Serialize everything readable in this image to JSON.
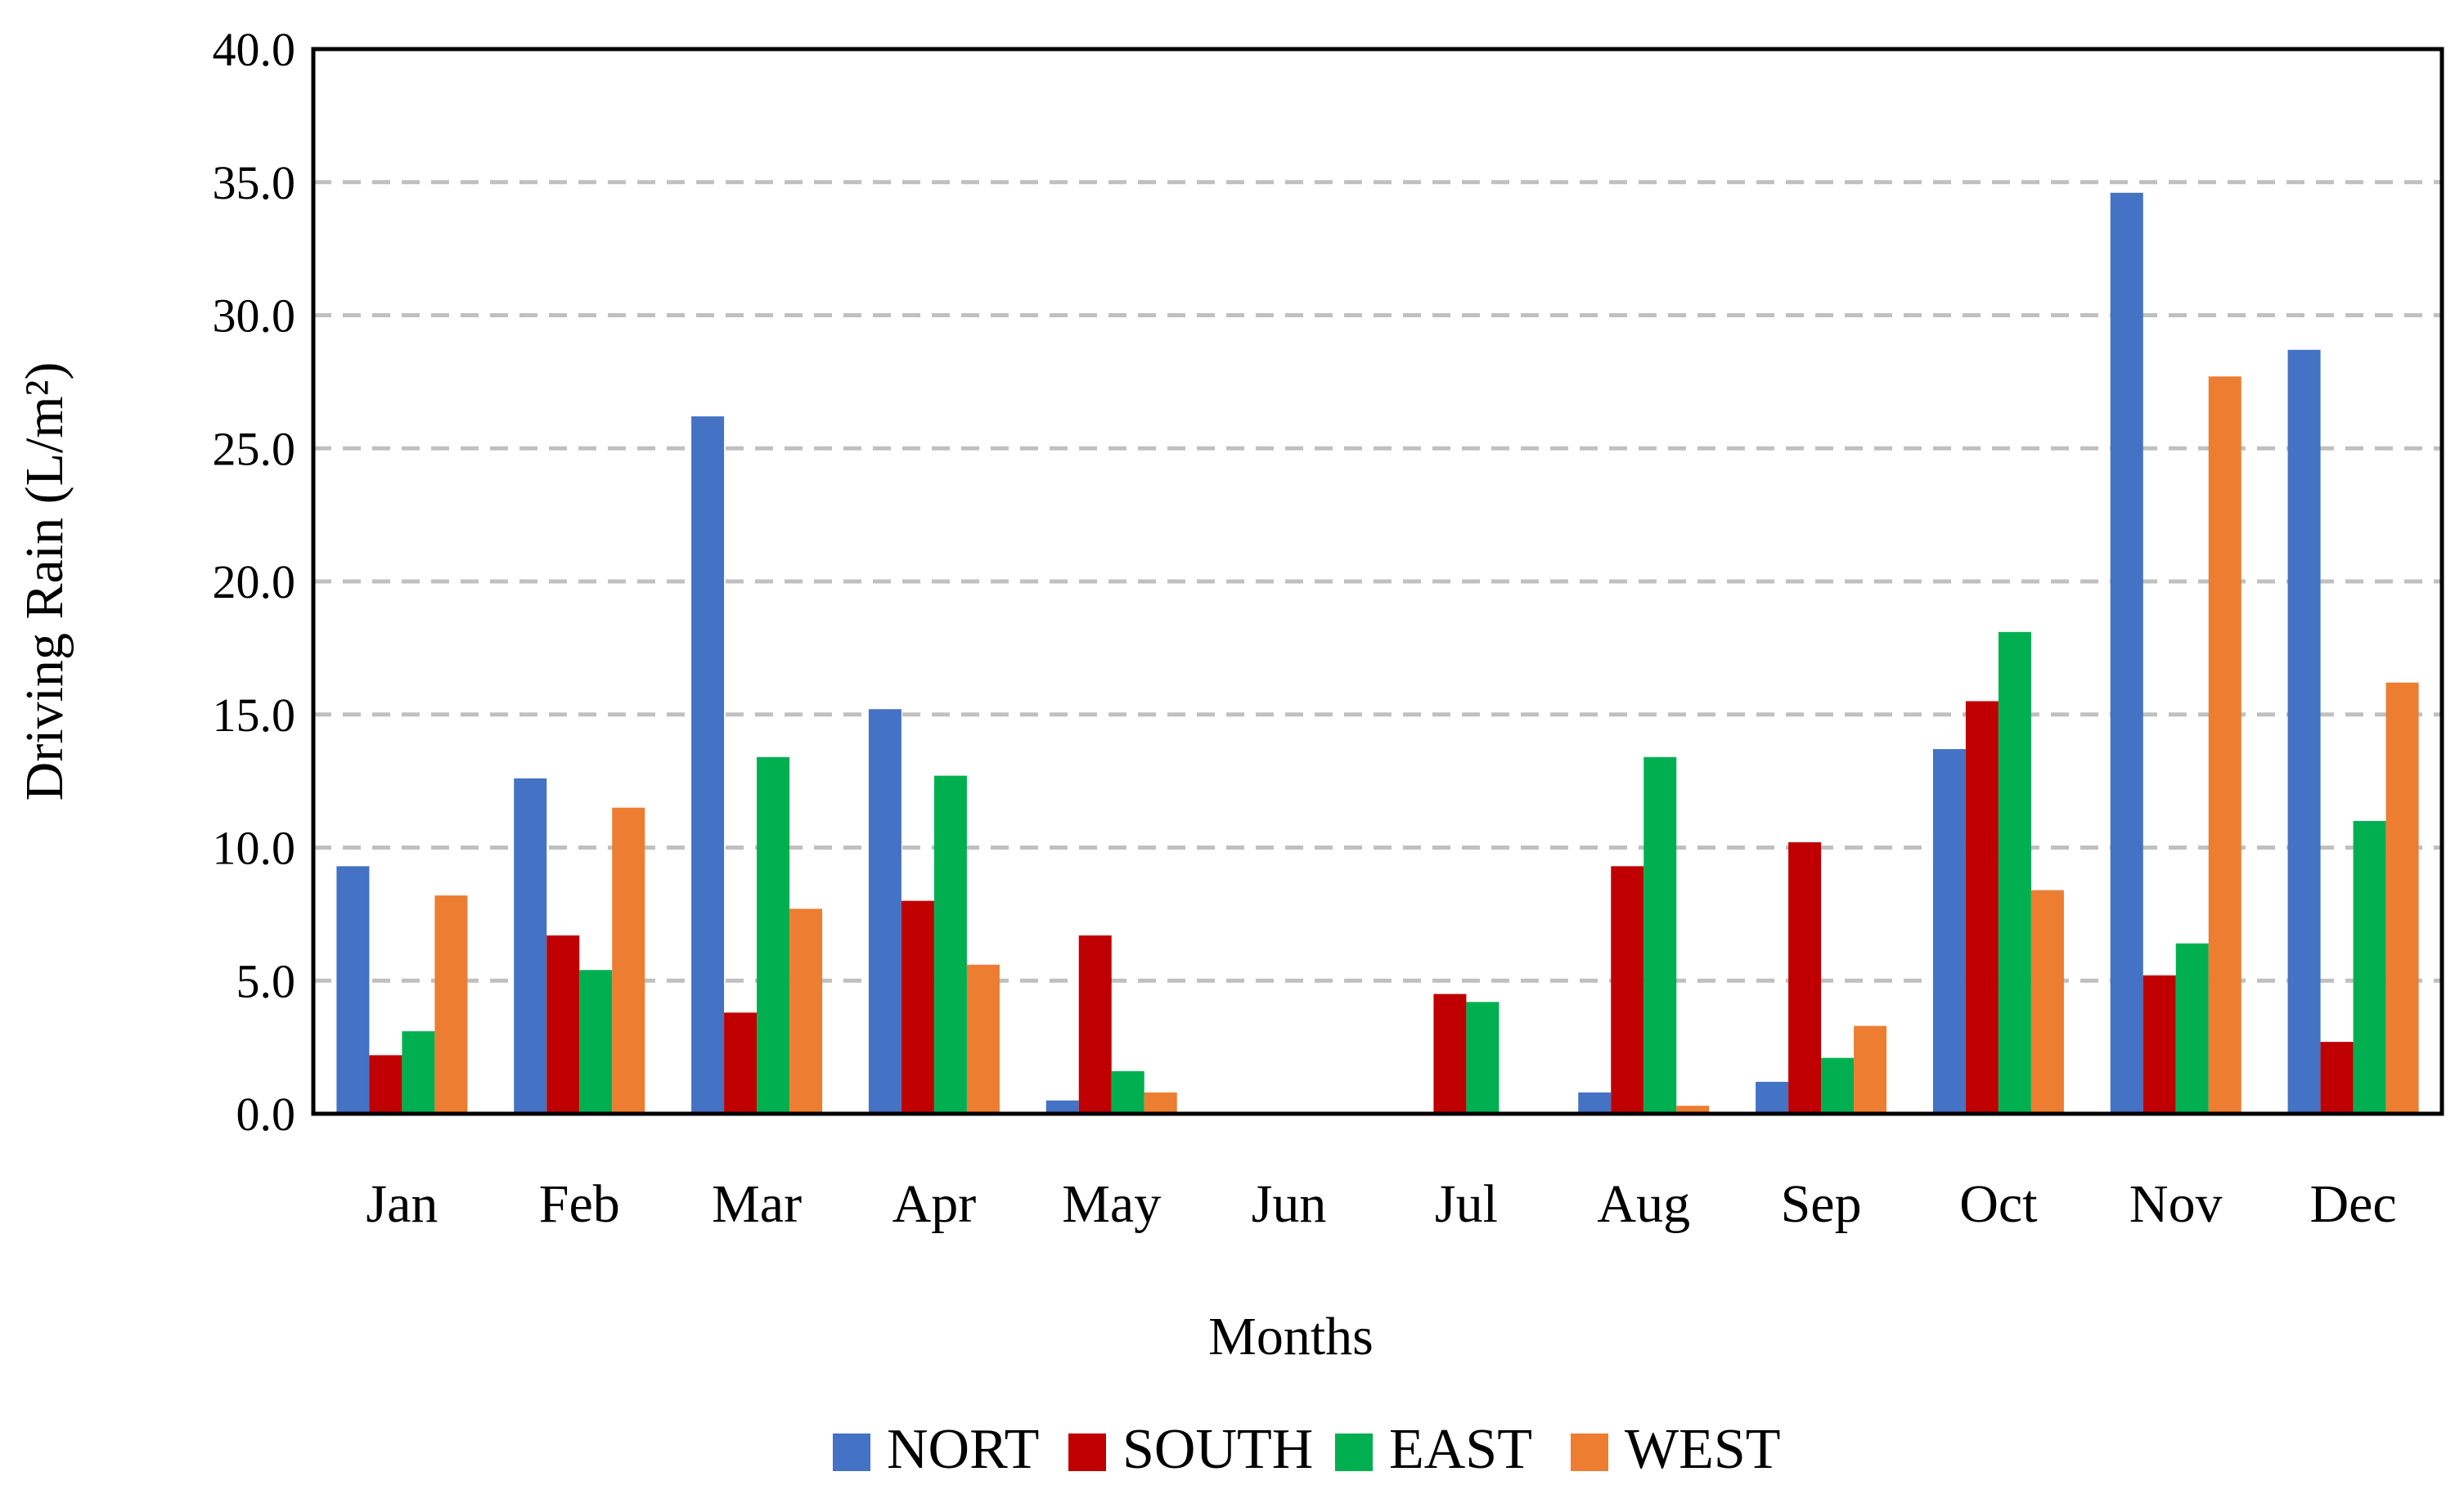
{
  "chart_data": {
    "type": "bar",
    "title": "",
    "xlabel": "Months",
    "ylabel": "Driving Rain (L/m²)",
    "ylim": [
      0,
      40
    ],
    "ytick_step": 5,
    "ytick_decimals": 1,
    "grid": true,
    "legend_position": "bottom",
    "categories": [
      "Jan",
      "Feb",
      "Mar",
      "Apr",
      "May",
      "Jun",
      "Jul",
      "Aug",
      "Sep",
      "Oct",
      "Nov",
      "Dec"
    ],
    "series": [
      {
        "name": "NORT",
        "color": "#4472C4",
        "values": [
          9.3,
          12.6,
          26.2,
          15.2,
          0.5,
          0,
          0,
          0.8,
          1.2,
          13.7,
          34.6,
          28.7
        ]
      },
      {
        "name": "SOUTH",
        "color": "#C00000",
        "values": [
          2.2,
          6.7,
          3.8,
          8.0,
          6.7,
          0,
          4.5,
          9.3,
          10.2,
          15.5,
          5.2,
          2.7
        ]
      },
      {
        "name": "EAST",
        "color": "#00B050",
        "values": [
          3.1,
          5.4,
          13.4,
          12.7,
          1.6,
          0,
          4.2,
          13.4,
          2.1,
          18.1,
          6.4,
          11.0
        ]
      },
      {
        "name": "WEST",
        "color": "#ED7D31",
        "values": [
          8.2,
          11.5,
          7.7,
          5.6,
          0.8,
          0,
          0,
          0.3,
          3.3,
          8.4,
          27.7,
          16.2
        ]
      }
    ]
  }
}
